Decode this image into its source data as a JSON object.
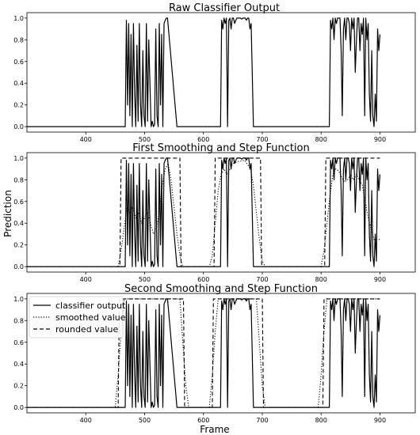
{
  "chart_data": [
    {
      "type": "line",
      "title": "Raw Classifier Output",
      "xlim": [
        300,
        960
      ],
      "ylim": [
        -0.05,
        1.05
      ],
      "xticks": [
        "400",
        "500",
        "600",
        "700",
        "800",
        "900"
      ],
      "yticks": [
        "0.0",
        "0.2",
        "0.4",
        "0.6",
        "0.8",
        "1.0"
      ],
      "series": [
        {
          "style": "solid",
          "x": [
            300,
            467,
            469,
            471,
            473,
            475,
            477,
            479,
            481,
            483,
            485,
            487,
            489,
            491,
            493,
            495,
            497,
            499,
            501,
            503,
            505,
            507,
            509,
            511,
            513,
            515,
            517,
            519,
            521,
            523,
            525,
            527,
            529,
            531,
            533,
            535,
            537,
            539,
            555,
            629,
            631,
            633,
            635,
            637,
            639,
            641,
            643,
            645,
            647,
            649,
            651,
            653,
            655,
            657,
            659,
            661,
            663,
            665,
            667,
            669,
            671,
            673,
            675,
            677,
            679,
            681,
            683,
            685,
            686,
            814,
            816,
            818,
            820,
            822,
            824,
            826,
            828,
            830,
            832,
            834,
            836,
            838,
            840,
            842,
            844,
            846,
            848,
            850,
            852,
            854,
            856,
            858,
            860,
            862,
            864,
            866,
            868,
            870,
            872,
            874,
            876,
            878,
            880,
            882,
            884,
            886,
            888,
            890,
            892,
            894,
            896,
            898,
            900
          ],
          "y": [
            0.0,
            0.0,
            0.98,
            0.2,
            0.95,
            0.1,
            0.85,
            0.0,
            0.95,
            0.3,
            0.0,
            0.75,
            0.05,
            0.95,
            0.2,
            0.0,
            0.7,
            0.1,
            0.0,
            0.95,
            0.05,
            0.8,
            0.4,
            0.0,
            0.05,
            0.0,
            0.02,
            0.9,
            0.1,
            0.0,
            0.95,
            0.2,
            0.85,
            0.0,
            0.95,
            0.98,
            1.0,
            1.0,
            0.0,
            0.0,
            0.98,
            0.9,
            1.0,
            0.95,
            1.0,
            0.0,
            0.98,
            1.0,
            0.9,
            1.0,
            1.0,
            0.95,
            0.98,
            1.0,
            1.0,
            1.0,
            1.0,
            0.99,
            1.0,
            1.0,
            1.0,
            0.98,
            1.0,
            1.0,
            0.9,
            0.95,
            0.5,
            0.0,
            0.0,
            0.0,
            0.98,
            0.9,
            1.0,
            0.8,
            1.0,
            0.95,
            1.0,
            1.0,
            1.0,
            0.7,
            0.1,
            0.9,
            1.0,
            0.8,
            1.0,
            1.0,
            0.95,
            0.7,
            1.0,
            0.9,
            1.0,
            0.5,
            0.8,
            1.0,
            1.0,
            0.7,
            0.95,
            0.85,
            1.0,
            0.1,
            1.0,
            0.8,
            0.95,
            0.3,
            0.05,
            0.7,
            0.1,
            0.0,
            0.3,
            0.05,
            0.9,
            0.7,
            0.85
          ]
        }
      ]
    },
    {
      "type": "line",
      "title": "First Smoothing and Step Function",
      "ylabel": "Prediction",
      "xlim": [
        300,
        960
      ],
      "ylim": [
        -0.05,
        1.05
      ],
      "xticks": [
        "400",
        "500",
        "600",
        "700",
        "800",
        "900"
      ],
      "yticks": [
        "0.0",
        "0.2",
        "0.4",
        "0.6",
        "0.8",
        "1.0"
      ],
      "series": [
        {
          "style": "solid",
          "x": [
            300,
            467,
            469,
            471,
            473,
            475,
            477,
            479,
            481,
            483,
            485,
            487,
            489,
            491,
            493,
            495,
            497,
            499,
            501,
            503,
            505,
            507,
            509,
            511,
            513,
            515,
            517,
            519,
            521,
            523,
            525,
            527,
            529,
            531,
            533,
            535,
            537,
            539,
            555,
            629,
            631,
            633,
            635,
            637,
            639,
            641,
            643,
            645,
            647,
            649,
            651,
            653,
            655,
            657,
            659,
            661,
            663,
            665,
            667,
            669,
            671,
            673,
            675,
            677,
            679,
            681,
            683,
            685,
            686,
            814,
            816,
            818,
            820,
            822,
            824,
            826,
            828,
            830,
            832,
            834,
            836,
            838,
            840,
            842,
            844,
            846,
            848,
            850,
            852,
            854,
            856,
            858,
            860,
            862,
            864,
            866,
            868,
            870,
            872,
            874,
            876,
            878,
            880,
            882,
            884,
            886,
            888,
            890,
            892,
            894,
            896,
            898,
            900
          ],
          "y": [
            0.0,
            0.0,
            0.98,
            0.2,
            0.95,
            0.1,
            0.85,
            0.0,
            0.95,
            0.3,
            0.0,
            0.75,
            0.05,
            0.95,
            0.2,
            0.0,
            0.7,
            0.1,
            0.0,
            0.95,
            0.05,
            0.8,
            0.4,
            0.0,
            0.05,
            0.0,
            0.02,
            0.9,
            0.1,
            0.0,
            0.95,
            0.2,
            0.85,
            0.0,
            0.95,
            0.98,
            1.0,
            1.0,
            0.0,
            0.0,
            0.98,
            0.9,
            1.0,
            0.95,
            1.0,
            0.0,
            0.98,
            1.0,
            0.9,
            1.0,
            1.0,
            0.95,
            0.98,
            1.0,
            1.0,
            1.0,
            1.0,
            0.99,
            1.0,
            1.0,
            1.0,
            0.98,
            1.0,
            1.0,
            0.9,
            0.95,
            0.5,
            0.0,
            0.0,
            0.0,
            0.98,
            0.9,
            1.0,
            0.8,
            1.0,
            0.95,
            1.0,
            1.0,
            1.0,
            0.7,
            0.1,
            0.9,
            1.0,
            0.8,
            1.0,
            1.0,
            0.95,
            0.7,
            1.0,
            0.9,
            1.0,
            0.5,
            0.8,
            1.0,
            1.0,
            0.7,
            0.95,
            0.85,
            1.0,
            0.1,
            1.0,
            0.8,
            0.95,
            0.3,
            0.05,
            0.7,
            0.1,
            0.0,
            0.3,
            0.05,
            0.9,
            0.7,
            0.85
          ]
        },
        {
          "style": "dotted",
          "x": [
            300,
            455,
            460,
            465,
            470,
            475,
            480,
            485,
            490,
            495,
            500,
            505,
            510,
            515,
            520,
            525,
            530,
            535,
            540,
            545,
            550,
            555,
            560,
            565,
            610,
            615,
            620,
            625,
            630,
            635,
            640,
            645,
            650,
            660,
            670,
            680,
            685,
            690,
            695,
            700,
            705,
            800,
            805,
            810,
            815,
            820,
            825,
            830,
            835,
            840,
            845,
            850,
            855,
            860,
            865,
            870,
            875,
            880,
            885,
            890,
            895,
            900
          ],
          "y": [
            0.0,
            0.0,
            0.15,
            0.35,
            0.55,
            0.5,
            0.55,
            0.45,
            0.5,
            0.4,
            0.45,
            0.5,
            0.4,
            0.3,
            0.35,
            0.5,
            0.75,
            0.9,
            0.95,
            0.8,
            0.55,
            0.3,
            0.1,
            0.0,
            0.0,
            0.1,
            0.4,
            0.7,
            0.85,
            0.9,
            0.85,
            0.9,
            0.95,
            0.97,
            0.98,
            0.9,
            0.75,
            0.5,
            0.25,
            0.05,
            0.0,
            0.0,
            0.15,
            0.4,
            0.65,
            0.85,
            0.9,
            0.88,
            0.82,
            0.78,
            0.8,
            0.85,
            0.8,
            0.85,
            0.8,
            0.75,
            0.6,
            0.45,
            0.35,
            0.25,
            0.25,
            0.25
          ]
        },
        {
          "style": "dashed",
          "x": [
            300,
            458,
            460,
            560,
            562,
            618,
            620,
            697,
            699,
            806,
            808,
            900
          ],
          "y": [
            0,
            0,
            1,
            1,
            0,
            0,
            1,
            1,
            0,
            0,
            1,
            1
          ]
        }
      ]
    },
    {
      "type": "line",
      "title": "Second Smoothing and Step Function",
      "xlabel": "Frame",
      "xlim": [
        300,
        960
      ],
      "ylim": [
        -0.05,
        1.05
      ],
      "xticks": [
        "400",
        "500",
        "600",
        "700",
        "800",
        "900"
      ],
      "yticks": [
        "0.0",
        "0.2",
        "0.4",
        "0.6",
        "0.8",
        "1.0"
      ],
      "legend": {
        "position": "top-left",
        "entries": [
          {
            "label": "classifier output",
            "style": "solid"
          },
          {
            "label": "smoothed value",
            "style": "dotted"
          },
          {
            "label": "rounded value",
            "style": "dashed"
          }
        ]
      },
      "series": [
        {
          "style": "solid",
          "x": [
            300,
            467,
            469,
            471,
            473,
            475,
            477,
            479,
            481,
            483,
            485,
            487,
            489,
            491,
            493,
            495,
            497,
            499,
            501,
            503,
            505,
            507,
            509,
            511,
            513,
            515,
            517,
            519,
            521,
            523,
            525,
            527,
            529,
            531,
            533,
            535,
            537,
            539,
            555,
            629,
            631,
            633,
            635,
            637,
            639,
            641,
            643,
            645,
            647,
            649,
            651,
            653,
            655,
            657,
            659,
            661,
            663,
            665,
            667,
            669,
            671,
            673,
            675,
            677,
            679,
            681,
            683,
            685,
            686,
            814,
            816,
            818,
            820,
            822,
            824,
            826,
            828,
            830,
            832,
            834,
            836,
            838,
            840,
            842,
            844,
            846,
            848,
            850,
            852,
            854,
            856,
            858,
            860,
            862,
            864,
            866,
            868,
            870,
            872,
            874,
            876,
            878,
            880,
            882,
            884,
            886,
            888,
            890,
            892,
            894,
            896,
            898,
            900
          ],
          "y": [
            0.0,
            0.0,
            0.98,
            0.2,
            0.95,
            0.1,
            0.85,
            0.0,
            0.95,
            0.3,
            0.0,
            0.75,
            0.05,
            0.95,
            0.2,
            0.0,
            0.7,
            0.1,
            0.0,
            0.95,
            0.05,
            0.8,
            0.4,
            0.0,
            0.05,
            0.0,
            0.02,
            0.9,
            0.1,
            0.0,
            0.95,
            0.2,
            0.85,
            0.0,
            0.95,
            0.98,
            1.0,
            1.0,
            0.0,
            0.0,
            0.98,
            0.9,
            1.0,
            0.95,
            1.0,
            0.0,
            0.98,
            1.0,
            0.9,
            1.0,
            1.0,
            0.95,
            0.98,
            1.0,
            1.0,
            1.0,
            1.0,
            0.99,
            1.0,
            1.0,
            1.0,
            0.98,
            1.0,
            1.0,
            0.9,
            0.95,
            0.5,
            0.0,
            0.0,
            0.0,
            0.98,
            0.9,
            1.0,
            0.8,
            1.0,
            0.95,
            1.0,
            1.0,
            1.0,
            0.7,
            0.1,
            0.9,
            1.0,
            0.8,
            1.0,
            1.0,
            0.95,
            0.7,
            1.0,
            0.9,
            1.0,
            0.5,
            0.8,
            1.0,
            1.0,
            0.7,
            0.95,
            0.85,
            1.0,
            0.1,
            1.0,
            0.8,
            0.95,
            0.3,
            0.05,
            0.7,
            0.1,
            0.0,
            0.3,
            0.05,
            0.9,
            0.7,
            0.85
          ]
        },
        {
          "style": "dotted",
          "x": [
            300,
            450,
            455,
            460,
            465,
            560,
            565,
            570,
            575,
            610,
            615,
            620,
            625,
            690,
            695,
            700,
            705,
            795,
            800,
            805,
            810,
            900
          ],
          "y": [
            0.0,
            0.0,
            0.3,
            0.7,
            1.0,
            1.0,
            0.6,
            0.2,
            0.0,
            0.0,
            0.3,
            0.7,
            1.0,
            1.0,
            0.6,
            0.2,
            0.0,
            0.0,
            0.3,
            0.7,
            1.0,
            1.0
          ]
        },
        {
          "style": "dashed",
          "x": [
            300,
            455,
            457,
            566,
            568,
            615,
            617,
            700,
            702,
            803,
            805,
            900
          ],
          "y": [
            0,
            0,
            1,
            1,
            0,
            0,
            1,
            1,
            0,
            0,
            1,
            1
          ]
        }
      ]
    }
  ]
}
